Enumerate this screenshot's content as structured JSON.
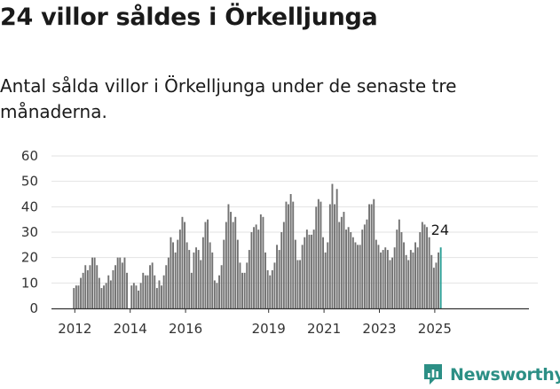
{
  "header": {
    "title": "24 villor såldes i Örkelljunga",
    "subtitle": "Antal sålda villor i Örkelljunga under de senaste tre månaderna."
  },
  "brand": {
    "name": "Newsworthy",
    "icon": "newsworthy-logo-icon",
    "color": "#2c8f85"
  },
  "chart_data": {
    "type": "bar",
    "title": "",
    "xlabel": "",
    "ylabel": "",
    "ylim": [
      0,
      60
    ],
    "yticks": [
      0,
      10,
      20,
      30,
      40,
      50,
      60
    ],
    "xticks": [
      "2012",
      "2014",
      "2016",
      "2019",
      "2021",
      "2023",
      "2025"
    ],
    "grid": true,
    "bar_color": "#727272",
    "highlight_color": "#2a9d94",
    "highlight_label": "24",
    "series": [
      {
        "values": [
          8,
          9,
          9,
          12,
          14,
          17,
          15,
          17,
          20,
          20,
          17,
          12,
          8,
          9,
          10,
          13,
          11,
          15,
          17,
          20,
          20,
          18,
          20,
          14,
          0,
          9,
          10,
          9,
          7,
          10,
          14,
          13,
          13,
          17,
          18,
          13,
          8,
          11,
          9,
          13,
          17,
          20,
          28,
          26,
          22,
          27,
          31,
          36,
          34,
          26,
          23,
          14,
          22,
          24,
          23,
          19,
          28,
          34,
          35,
          26,
          22,
          11,
          10,
          13,
          17,
          27,
          34,
          41,
          38,
          34,
          36,
          27,
          18,
          14,
          14,
          18,
          23,
          30,
          32,
          33,
          31,
          37,
          36,
          22,
          15,
          13,
          15,
          18,
          25,
          23,
          30,
          34,
          42,
          41,
          45,
          42,
          27,
          19,
          19,
          25,
          28,
          31,
          29,
          29,
          31,
          40,
          43,
          42,
          28,
          22,
          26,
          41,
          49,
          41,
          47,
          34,
          36,
          38,
          31,
          32,
          30,
          28,
          26,
          25,
          25,
          31,
          33,
          35,
          41,
          41,
          43,
          27,
          25,
          22,
          23,
          24,
          23,
          19,
          20,
          24,
          31,
          35,
          30,
          26,
          21,
          19,
          23,
          22,
          26,
          24,
          30,
          34,
          33,
          32,
          28,
          21,
          16,
          18,
          22,
          24
        ]
      }
    ]
  }
}
